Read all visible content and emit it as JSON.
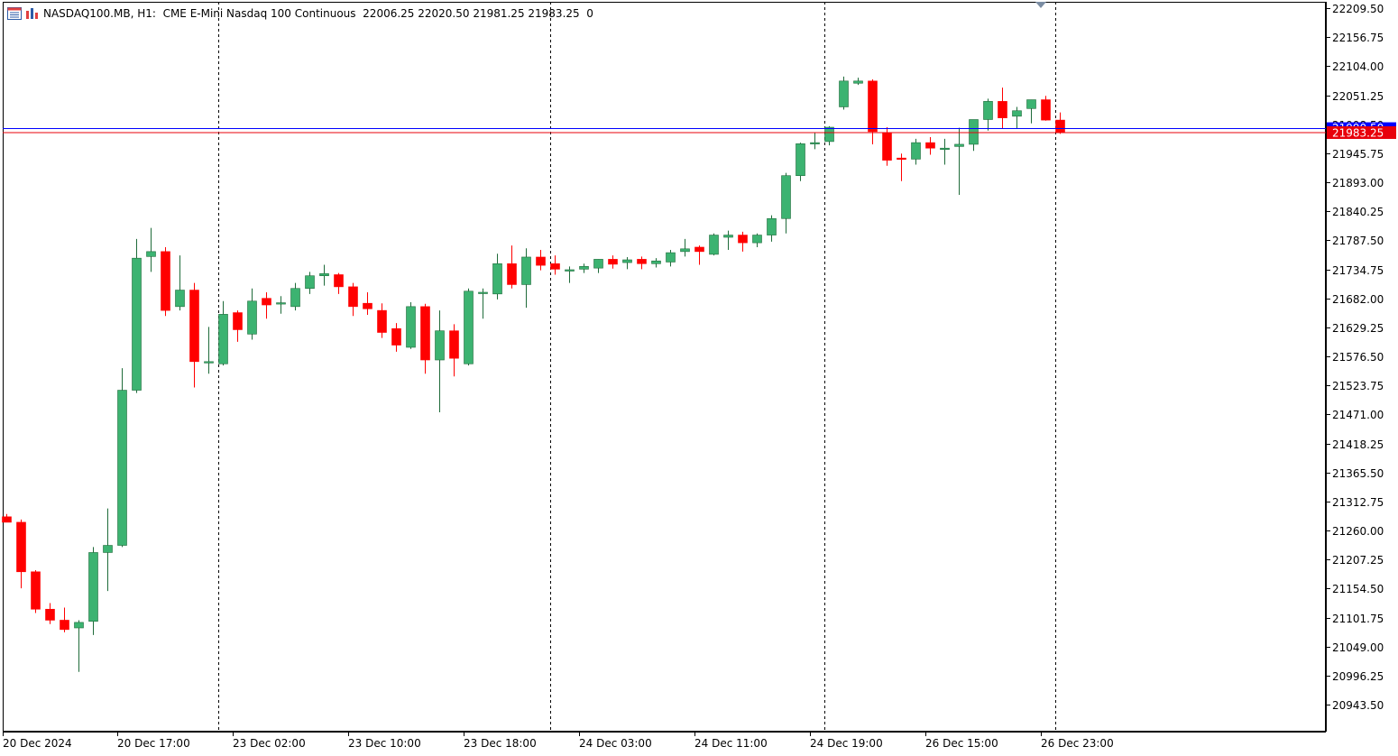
{
  "header": {
    "symbol": "NASDAQ100.MB, H1:",
    "description": "CME E-Mini Nasdaq 100 Continuous",
    "ohlc": "22006.25 22020.50 21981.25 21983.25",
    "volume": "0",
    "icons": [
      "grid-list-icon",
      "chart-bars-icon"
    ]
  },
  "current_price": {
    "label": "21983.25",
    "value": 21983.25,
    "color": "#e8000b"
  },
  "hidden_line_label": {
    "label": "21990.50",
    "value": 21990.5,
    "color": "#0000ff"
  },
  "colors": {
    "bull": "#3cb371",
    "bear": "#ff0000",
    "grid": "#000000",
    "axis_text": "#000000"
  },
  "chart_data": {
    "type": "candlestick",
    "ylim": [
      20917.2,
      22223.0
    ],
    "y_ticks": [
      "22209.50",
      "22156.75",
      "22104.00",
      "22051.25",
      "21998.50",
      "21945.75",
      "21893.00",
      "21840.25",
      "21787.50",
      "21734.75",
      "21682.00",
      "21629.25",
      "21576.50",
      "21523.75",
      "21471.00",
      "21418.25",
      "21365.50",
      "21312.75",
      "21260.00",
      "21207.25",
      "21154.50",
      "21101.75",
      "21049.00",
      "20996.25",
      "20943.50"
    ],
    "x_labels": [
      "20 Dec 2024",
      "20 Dec 17:00",
      "23 Dec 02:00",
      "23 Dec 10:00",
      "23 Dec 18:00",
      "24 Dec 03:00",
      "24 Dec 11:00",
      "24 Dec 19:00",
      "26 Dec 15:00",
      "26 Dec 23:00"
    ],
    "session_separators_after_bar": [
      14,
      37,
      56,
      72
    ],
    "candles": [
      [
        21285,
        21290,
        21275,
        21275
      ],
      [
        21275,
        21280,
        21155,
        21185
      ],
      [
        21185,
        21188,
        21110,
        21117
      ],
      [
        21117,
        21128,
        21090,
        21097
      ],
      [
        21097,
        21120,
        21075,
        21080
      ],
      [
        21083,
        21097,
        21003,
        21093
      ],
      [
        21095,
        21230,
        21070,
        21220
      ],
      [
        21220,
        21300,
        21150,
        21233
      ],
      [
        21233,
        21555,
        21230,
        21515
      ],
      [
        21515,
        21790,
        21510,
        21755
      ],
      [
        21758,
        21810,
        21730,
        21767
      ],
      [
        21767,
        21775,
        21650,
        21660
      ],
      [
        21667,
        21760,
        21660,
        21697
      ],
      [
        21697,
        21710,
        21520,
        21567
      ],
      [
        21567,
        21630,
        21545,
        21567
      ],
      [
        21563,
        21677,
        21560,
        21653
      ],
      [
        21656,
        21660,
        21603,
        21625
      ],
      [
        21617,
        21700,
        21607,
        21677
      ],
      [
        21682,
        21693,
        21645,
        21670
      ],
      [
        21672,
        21686,
        21654,
        21674
      ],
      [
        21667,
        21710,
        21660,
        21700
      ],
      [
        21700,
        21730,
        21690,
        21723
      ],
      [
        21723,
        21743,
        21705,
        21727
      ],
      [
        21725,
        21728,
        21690,
        21703
      ],
      [
        21703,
        21710,
        21650,
        21667
      ],
      [
        21673,
        21693,
        21652,
        21663
      ],
      [
        21660,
        21673,
        21610,
        21620
      ],
      [
        21627,
        21637,
        21585,
        21597
      ],
      [
        21593,
        21675,
        21590,
        21667
      ],
      [
        21667,
        21672,
        21545,
        21570
      ],
      [
        21570,
        21660,
        21475,
        21623
      ],
      [
        21623,
        21635,
        21540,
        21573
      ],
      [
        21563,
        21700,
        21560,
        21695
      ],
      [
        21692,
        21700,
        21645,
        21693
      ],
      [
        21690,
        21763,
        21680,
        21745
      ],
      [
        21745,
        21778,
        21700,
        21707
      ],
      [
        21707,
        21773,
        21665,
        21757
      ],
      [
        21757,
        21770,
        21733,
        21742
      ],
      [
        21745,
        21760,
        21725,
        21735
      ],
      [
        21733,
        21740,
        21710,
        21734
      ],
      [
        21735,
        21745,
        21728,
        21740
      ],
      [
        21737,
        21753,
        21728,
        21753
      ],
      [
        21753,
        21760,
        21736,
        21744
      ],
      [
        21747,
        21757,
        21735,
        21752
      ],
      [
        21753,
        21758,
        21735,
        21745
      ],
      [
        21745,
        21755,
        21738,
        21750
      ],
      [
        21748,
        21770,
        21740,
        21765
      ],
      [
        21767,
        21790,
        21758,
        21772
      ],
      [
        21775,
        21778,
        21743,
        21767
      ],
      [
        21762,
        21800,
        21760,
        21797
      ],
      [
        21793,
        21805,
        21770,
        21797
      ],
      [
        21797,
        21803,
        21767,
        21783
      ],
      [
        21783,
        21800,
        21775,
        21797
      ],
      [
        21797,
        21833,
        21785,
        21827
      ],
      [
        21827,
        21910,
        21800,
        21905
      ],
      [
        21905,
        21965,
        21895,
        21963
      ],
      [
        21963,
        21983,
        21953,
        21965
      ],
      [
        21967,
        21995,
        21960,
        21993
      ],
      [
        22030,
        22085,
        22025,
        22077
      ],
      [
        22073,
        22083,
        22070,
        22077
      ],
      [
        22077,
        22080,
        21962,
        21985
      ],
      [
        21983,
        21993,
        21923,
        21933
      ],
      [
        21937,
        21945,
        21895,
        21935
      ],
      [
        21935,
        21972,
        21925,
        21965
      ],
      [
        21965,
        21975,
        21943,
        21955
      ],
      [
        21953,
        21972,
        21925,
        21955
      ],
      [
        21958,
        21992,
        21870,
        21962
      ],
      [
        21962,
        22007,
        21950,
        22007
      ],
      [
        22007,
        22045,
        21987,
        22040
      ],
      [
        22040,
        22065,
        21990,
        22010
      ],
      [
        22013,
        22030,
        21990,
        22023
      ],
      [
        22027,
        22043,
        22000,
        22043
      ],
      [
        22043,
        22050,
        22005,
        22006
      ],
      [
        22006,
        22020,
        21981,
        21983
      ]
    ]
  }
}
